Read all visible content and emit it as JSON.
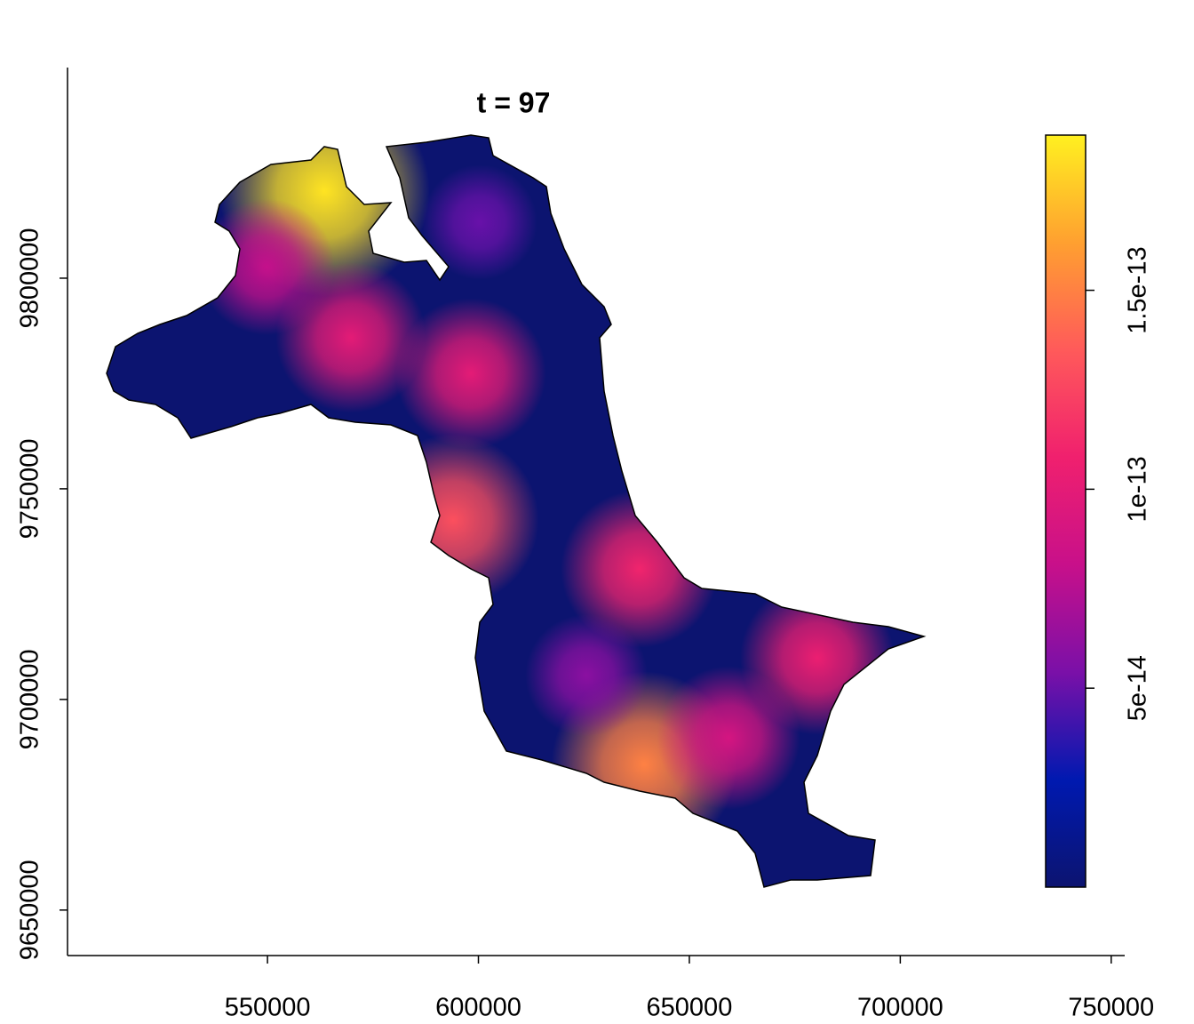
{
  "chart_data": {
    "type": "raster",
    "title": "t = 97",
    "xlim": [
      502600,
      753200
    ],
    "ylim": [
      9639200,
      9850000
    ],
    "xticks": [
      550000,
      600000,
      650000,
      700000,
      750000
    ],
    "yticks": [
      9650000,
      9700000,
      9750000,
      9800000
    ],
    "zlim": [
      0,
      1.89e-13
    ],
    "zticks": [
      5e-14,
      1e-13,
      1.5e-13
    ],
    "colors": [
      "#0c1470",
      "#0019b0",
      "#7a10a8",
      "#c8108a",
      "#f0206e",
      "#ff5a5a",
      "#ffa030",
      "#fff020"
    ],
    "points": {
      "x": [
        563500,
        569800,
        598200,
        594000,
        638200,
        639300,
        680300,
        600300,
        625600,
        659300,
        549800
      ],
      "y": [
        9820700,
        9785900,
        9777400,
        9742600,
        9731000,
        9684600,
        9709900,
        9813300,
        9705700,
        9690900,
        9802700
      ],
      "values": [
        1.85e-13,
        1e-13,
        1e-13,
        1.3e-13,
        1.1e-13,
        1.5e-13,
        1.05e-13,
        5e-14,
        6e-14,
        9e-14,
        8e-14
      ]
    }
  }
}
